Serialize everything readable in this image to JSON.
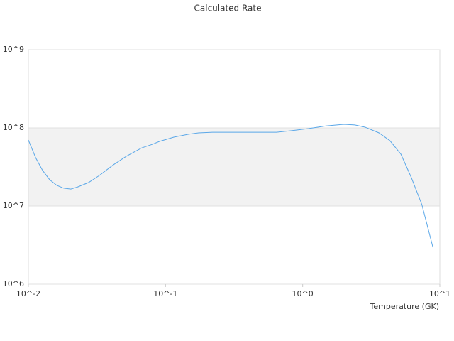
{
  "chart_data": {
    "type": "line",
    "title": "Calculated Rate",
    "x_label": "Temperature (GK)",
    "x": [
      0.01,
      0.0113,
      0.0127,
      0.0143,
      0.0161,
      0.0181,
      0.0204,
      0.023,
      0.0275,
      0.0329,
      0.0417,
      0.0518,
      0.0672,
      0.0803,
      0.0903,
      0.115,
      0.146,
      0.174,
      0.22,
      0.357,
      0.645,
      0.82,
      1.1,
      1.48,
      2.0,
      2.4,
      2.86,
      3.6,
      4.33,
      5.2,
      6.2,
      7.4,
      8.9
    ],
    "series": [
      {
        "color": "#5aa7e8",
        "values": [
          70000000,
          41500000,
          28500000,
          21700000,
          18400000,
          16900000,
          16500000,
          17600000,
          20000000,
          24600000,
          33700000,
          43300000,
          55600000,
          61700000,
          67200000,
          76200000,
          82800000,
          86400000,
          88000000,
          88000000,
          88000000,
          92000000,
          98000000,
          106000000,
          111000000,
          109000000,
          102000000,
          86400000,
          68600000,
          46200000,
          23100000,
          10400000,
          2970000
        ]
      }
    ],
    "xlog": true,
    "ylog": true,
    "xlim": [
      0.01,
      10
    ],
    "ylim": [
      1000000,
      1000000000
    ],
    "xticks": [
      {
        "value": 0.01,
        "label": "10^-2"
      },
      {
        "value": 0.1,
        "label": "10^-1"
      },
      {
        "value": 1,
        "label": "10^0"
      },
      {
        "value": 10,
        "label": "10^1"
      }
    ],
    "yticks": [
      {
        "value": 1000000,
        "label": "10^6"
      },
      {
        "value": 10000000,
        "label": "10^7"
      },
      {
        "value": 100000000,
        "label": "10^8"
      },
      {
        "value": 1000000000,
        "label": "10^9"
      }
    ],
    "grid": true
  }
}
